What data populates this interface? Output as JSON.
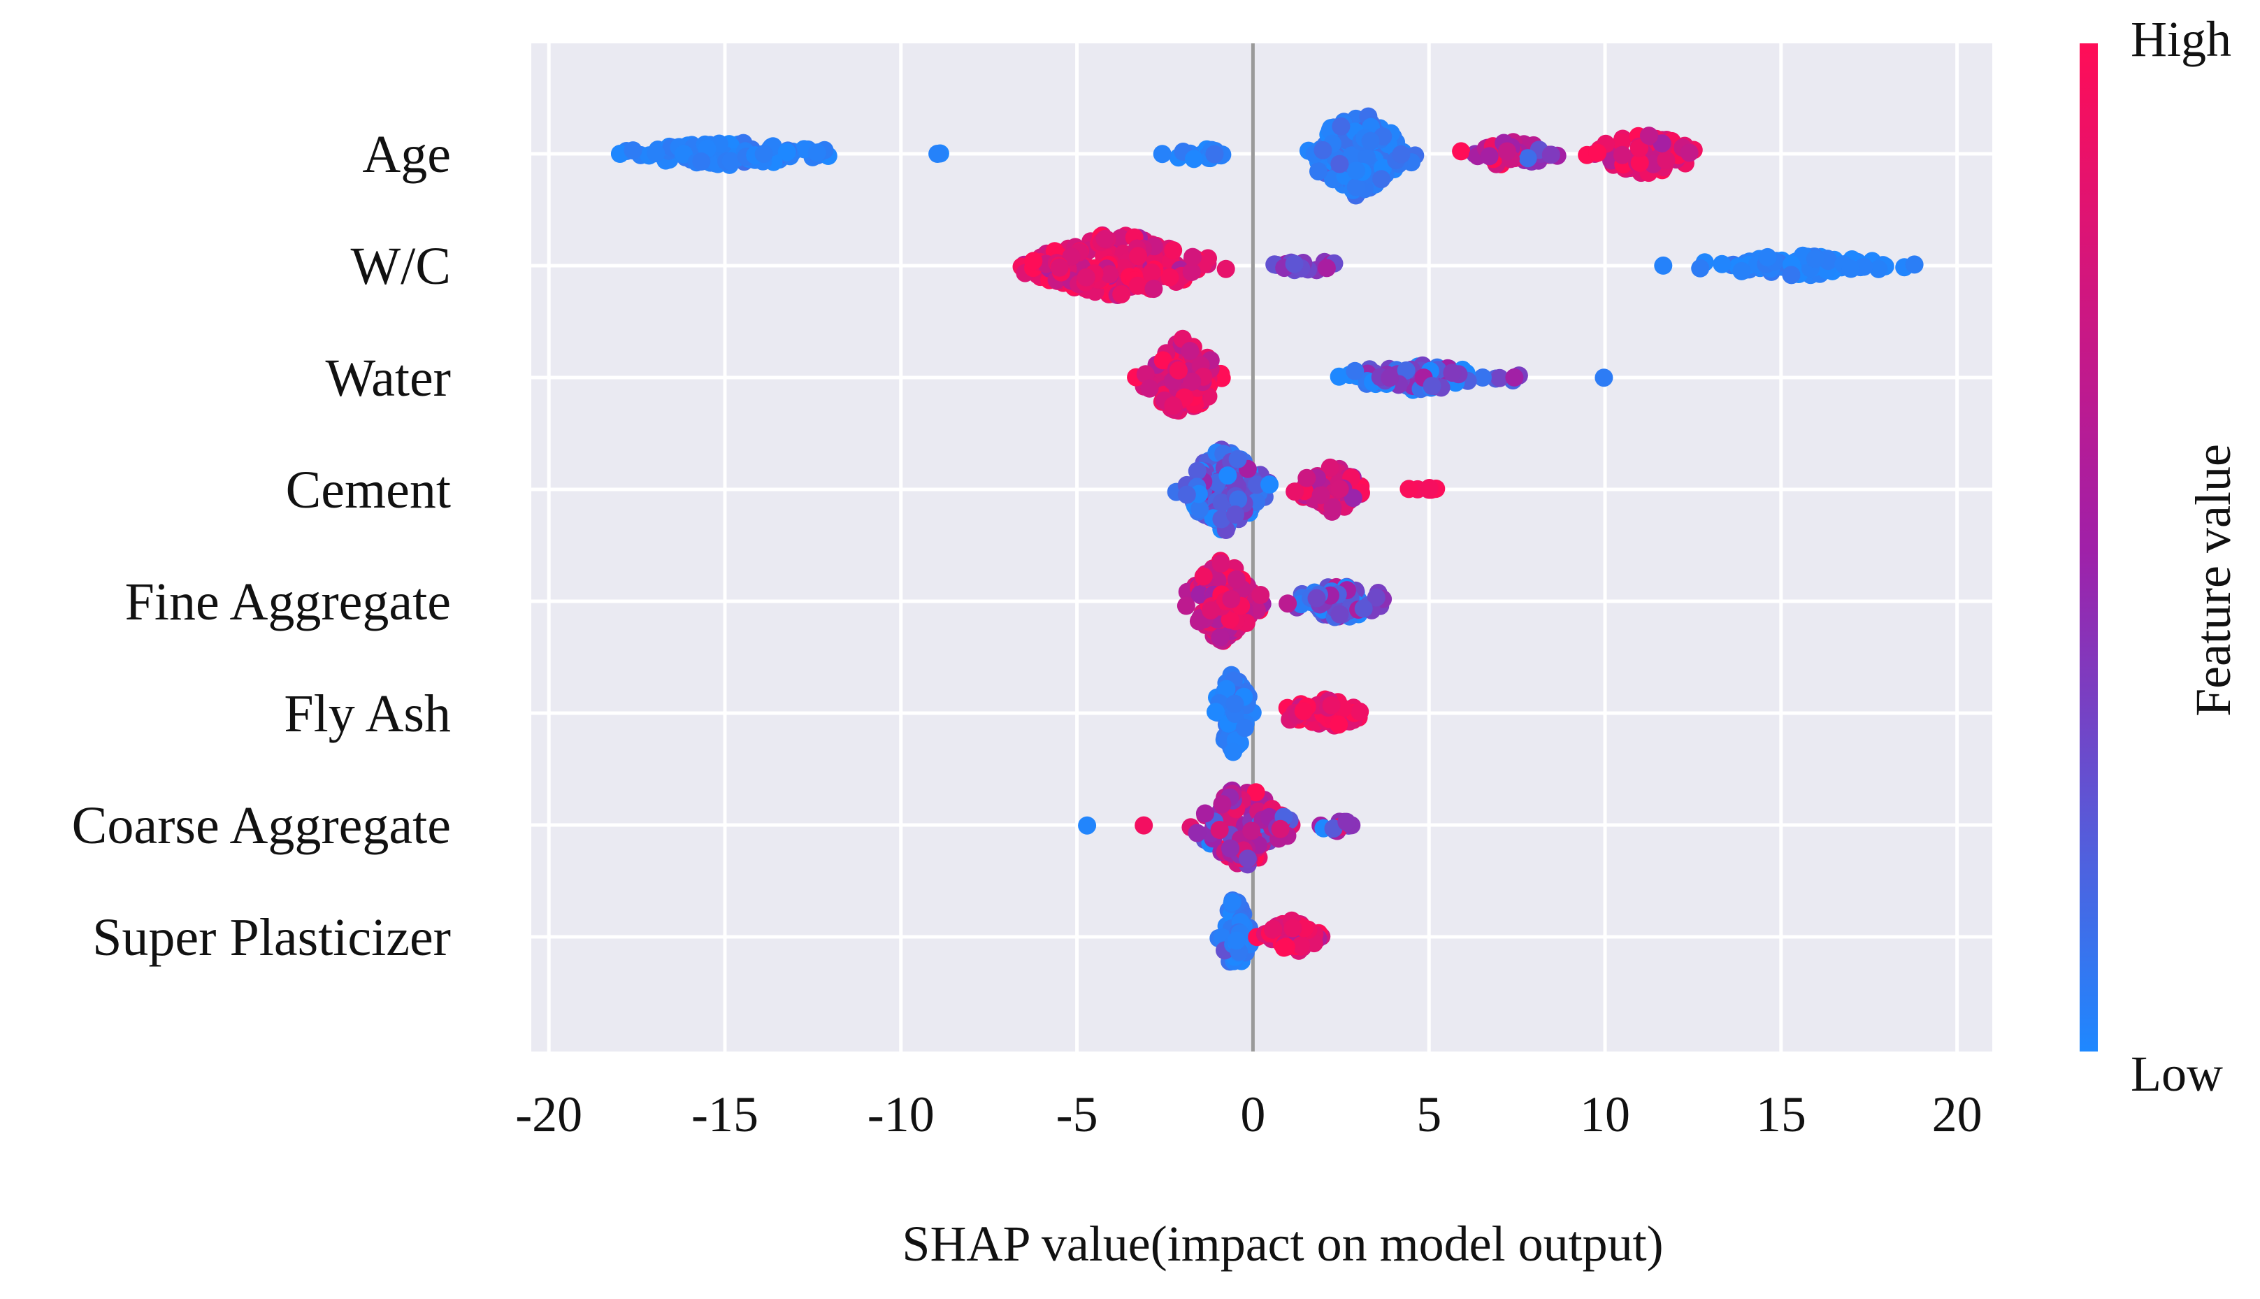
{
  "chart_data": {
    "type": "scatter",
    "subtype": "shap-beeswarm",
    "title": "",
    "xlabel": "SHAP  value(impact on model output)",
    "ylabel": "",
    "xlim": [
      -20.5,
      21
    ],
    "xticks": [
      -20,
      -15,
      -10,
      -5,
      0,
      5,
      10,
      15,
      20
    ],
    "xtick_labels": [
      "-20",
      "-15",
      "-10",
      "-5",
      "0",
      "5",
      "10",
      "15",
      "20"
    ],
    "grid": true,
    "colorbar": {
      "label": "Feature value",
      "high_label": "High",
      "low_label": "Low",
      "low_color": "#1e88ff",
      "mid_color": "#a020a8",
      "high_color": "#ff0d57"
    },
    "features": [
      {
        "name": "Age",
        "clusters": [
          {
            "range": [
              -19.0,
              -10.8
            ],
            "count": 90,
            "spread": 0.28,
            "color_mean": 0.03,
            "color_sd": 0.03
          },
          {
            "range": [
              -9.2,
              -8.6
            ],
            "count": 2,
            "spread": 0.05,
            "color_mean": 0.03,
            "color_sd": 0.02
          },
          {
            "range": [
              -3.0,
              -0.3
            ],
            "count": 16,
            "spread": 0.15,
            "color_mean": 0.05,
            "color_sd": 0.04
          },
          {
            "range": [
              1.0,
              5.0
            ],
            "count": 150,
            "spread": 1.0,
            "color_mean": 0.06,
            "color_sd": 0.05
          },
          {
            "range": [
              5.5,
              9.0
            ],
            "count": 45,
            "spread": 0.35,
            "color_mean": 0.55,
            "color_sd": 0.2
          },
          {
            "range": [
              9.0,
              13.3
            ],
            "count": 60,
            "spread": 0.5,
            "color_mean": 0.85,
            "color_sd": 0.12
          }
        ]
      },
      {
        "name": "W/C",
        "clusters": [
          {
            "range": [
              -7.3,
              -0.5
            ],
            "count": 180,
            "spread": 0.8,
            "color_mean": 0.86,
            "color_sd": 0.12
          },
          {
            "range": [
              0.2,
              3.0
            ],
            "count": 22,
            "spread": 0.15,
            "color_mean": 0.38,
            "color_sd": 0.12
          },
          {
            "range": [
              11.3,
              19.6
            ],
            "count": 75,
            "spread": 0.25,
            "color_mean": 0.03,
            "color_sd": 0.03
          }
        ]
      },
      {
        "name": "Water",
        "clusters": [
          {
            "range": [
              -3.6,
              -0.4
            ],
            "count": 120,
            "spread": 0.9,
            "color_mean": 0.82,
            "color_sd": 0.13
          },
          {
            "range": [
              1.0,
              8.2
            ],
            "count": 85,
            "spread": 0.3,
            "color_mean": 0.2,
            "color_sd": 0.15
          },
          {
            "range": [
              9.8,
              10.2
            ],
            "count": 1,
            "spread": 0.02,
            "color_mean": 0.03,
            "color_sd": 0.01
          }
        ]
      },
      {
        "name": "Cement",
        "clusters": [
          {
            "range": [
              -2.4,
              0.8
            ],
            "count": 160,
            "spread": 1.0,
            "color_mean": 0.18,
            "color_sd": 0.15
          },
          {
            "range": [
              0.8,
              3.8
            ],
            "count": 80,
            "spread": 0.55,
            "color_mean": 0.78,
            "color_sd": 0.15
          },
          {
            "range": [
              4.0,
              6.2
            ],
            "count": 7,
            "spread": 0.05,
            "color_mean": 0.95,
            "color_sd": 0.04
          }
        ]
      },
      {
        "name": "Fine Aggregate",
        "clusters": [
          {
            "range": [
              -2.2,
              0.5
            ],
            "count": 140,
            "spread": 1.0,
            "color_mean": 0.8,
            "color_sd": 0.15
          },
          {
            "range": [
              0.5,
              4.4
            ],
            "count": 70,
            "spread": 0.45,
            "color_mean": 0.25,
            "color_sd": 0.15
          }
        ]
      },
      {
        "name": "Fly Ash",
        "clusters": [
          {
            "range": [
              -1.3,
              0.2
            ],
            "count": 70,
            "spread": 1.0,
            "color_mean": 0.04,
            "color_sd": 0.04
          },
          {
            "range": [
              0.3,
              3.8
            ],
            "count": 60,
            "spread": 0.35,
            "color_mean": 0.92,
            "color_sd": 0.08
          }
        ]
      },
      {
        "name": "Coarse Aggregate",
        "clusters": [
          {
            "range": [
              -4.8,
              -4.6
            ],
            "count": 1,
            "spread": 0.02,
            "color_mean": 0.02,
            "color_sd": 0.01
          },
          {
            "range": [
              -3.2,
              -2.9
            ],
            "count": 1,
            "spread": 0.02,
            "color_mean": 0.95,
            "color_sd": 0.02
          },
          {
            "range": [
              -2.0,
              1.5
            ],
            "count": 120,
            "spread": 1.0,
            "color_mean": 0.62,
            "color_sd": 0.22
          },
          {
            "range": [
              1.5,
              3.2
            ],
            "count": 12,
            "spread": 0.15,
            "color_mean": 0.4,
            "color_sd": 0.3
          }
        ]
      },
      {
        "name": "Super Plasticizer",
        "clusters": [
          {
            "range": [
              -1.0,
              0.0
            ],
            "count": 50,
            "spread": 1.0,
            "color_mean": 0.05,
            "color_sd": 0.05
          },
          {
            "range": [
              0.0,
              2.2
            ],
            "count": 55,
            "spread": 0.4,
            "color_mean": 0.88,
            "color_sd": 0.1
          }
        ]
      }
    ]
  }
}
